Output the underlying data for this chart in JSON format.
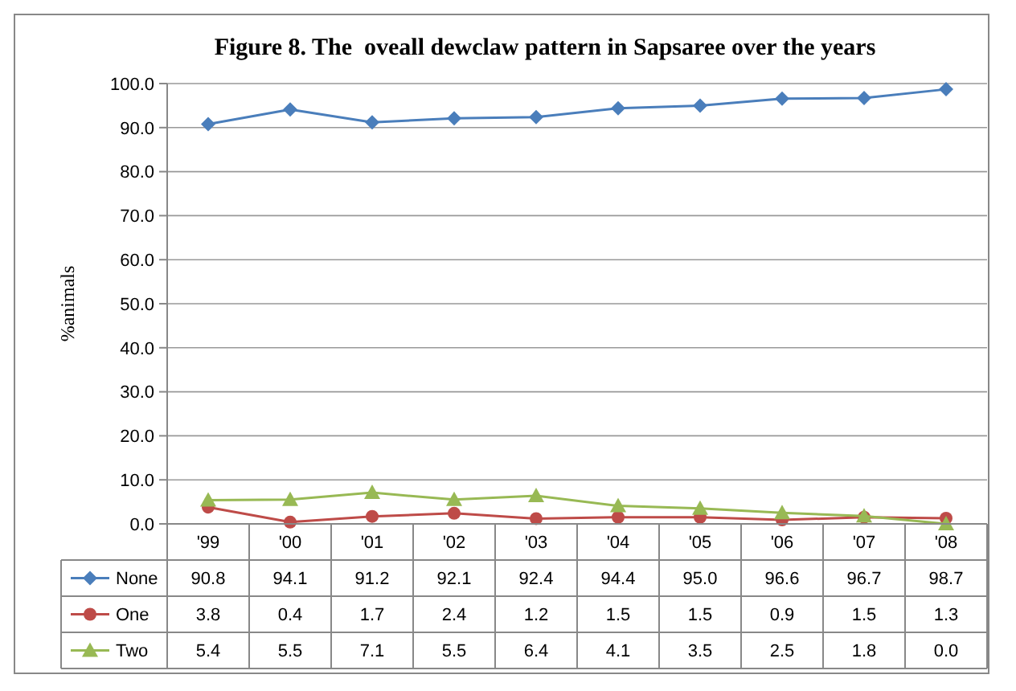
{
  "chart_data": {
    "type": "line",
    "title": "Figure 8. The  oveall dewclaw pattern in Sapsaree over the years",
    "ylabel": "%animals",
    "categories": [
      "'99",
      "'00",
      "'01",
      "'02",
      "'03",
      "'04",
      "'05",
      "'06",
      "'07",
      "'08"
    ],
    "series": [
      {
        "name": "None",
        "color": "#4a7ebb",
        "marker": "diamond",
        "values": [
          90.8,
          94.1,
          91.2,
          92.1,
          92.4,
          94.4,
          95.0,
          96.6,
          96.7,
          98.7
        ],
        "value_labels": [
          "90.8",
          "94.1",
          "91.2",
          "92.1",
          "92.4",
          "94.4",
          "95.0",
          "96.6",
          "96.7",
          "98.7"
        ]
      },
      {
        "name": "One",
        "color": "#be4b48",
        "marker": "circle",
        "values": [
          3.8,
          0.4,
          1.7,
          2.4,
          1.2,
          1.5,
          1.5,
          0.9,
          1.5,
          1.3
        ],
        "value_labels": [
          "3.8",
          "0.4",
          "1.7",
          "2.4",
          "1.2",
          "1.5",
          "1.5",
          "0.9",
          "1.5",
          "1.3"
        ]
      },
      {
        "name": "Two",
        "color": "#98b954",
        "marker": "triangle",
        "values": [
          5.4,
          5.5,
          7.1,
          5.5,
          6.4,
          4.1,
          3.5,
          2.5,
          1.8,
          0.0
        ],
        "value_labels": [
          "5.4",
          "5.5",
          "7.1",
          "5.5",
          "6.4",
          "4.1",
          "3.5",
          "2.5",
          "1.8",
          "0.0"
        ]
      }
    ],
    "ylim": [
      0,
      100
    ],
    "yticks": [
      {
        "value": 0,
        "label": "0.0"
      },
      {
        "value": 10,
        "label": "10.0"
      },
      {
        "value": 20,
        "label": "20.0"
      },
      {
        "value": 30,
        "label": "30.0"
      },
      {
        "value": 40,
        "label": "40.0"
      },
      {
        "value": 50,
        "label": "50.0"
      },
      {
        "value": 60,
        "label": "60.0"
      },
      {
        "value": 70,
        "label": "70.0"
      },
      {
        "value": 80,
        "label": "80.0"
      },
      {
        "value": 90,
        "label": "90.0"
      },
      {
        "value": 100,
        "label": "100.0"
      }
    ],
    "grid": "y",
    "legend": "bottom",
    "line_style": "solid"
  }
}
